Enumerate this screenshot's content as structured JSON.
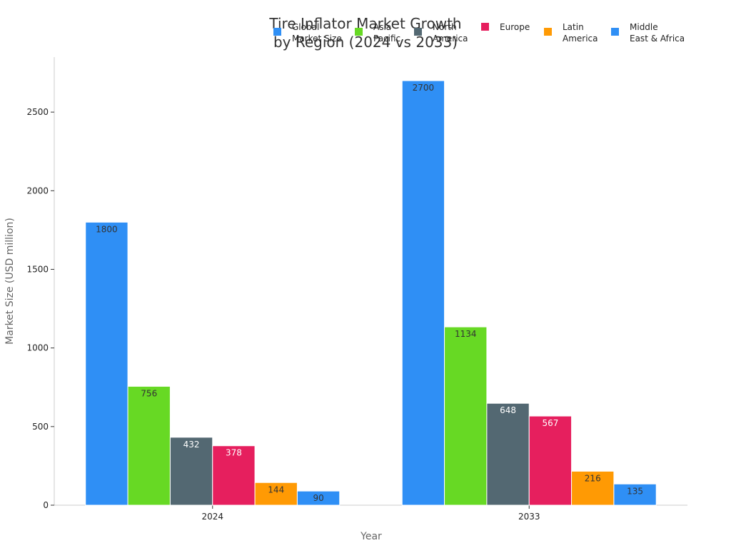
{
  "chart_data": {
    "type": "bar",
    "title_lines": [
      "Tire Inflator Market Growth",
      "by Region (2024 vs 2033)"
    ],
    "xlabel": "Year",
    "ylabel": "Market Size (USD million)",
    "categories": [
      "2024",
      "2033"
    ],
    "ylim": [
      0,
      2850
    ],
    "yticks": [
      0,
      500,
      1000,
      1500,
      2000,
      2500
    ],
    "grid": false,
    "legend_position": "top-right",
    "series": [
      {
        "name": "Global Market Size",
        "legend_lines": [
          "Global",
          "Market Size"
        ],
        "color": "#2f8ff5",
        "label_color": "#333333",
        "values": [
          1800,
          2700
        ]
      },
      {
        "name": "Asia Pacific",
        "legend_lines": [
          "Asia",
          "Pacific"
        ],
        "color": "#67d924",
        "label_color": "#333333",
        "values": [
          756,
          1134
        ]
      },
      {
        "name": "North America",
        "legend_lines": [
          "North",
          "America"
        ],
        "color": "#536872",
        "label_color": "#ffffff",
        "values": [
          432,
          648
        ]
      },
      {
        "name": "Europe",
        "legend_lines": [
          "Europe"
        ],
        "color": "#e61f5e",
        "label_color": "#ffffff",
        "values": [
          378,
          567
        ]
      },
      {
        "name": "Latin America",
        "legend_lines": [
          "Latin",
          "America"
        ],
        "color": "#ff9a04",
        "label_color": "#333333",
        "values": [
          144,
          216
        ]
      },
      {
        "name": "Middle East & Africa",
        "legend_lines": [
          "Middle",
          "East & Africa"
        ],
        "color": "#2f8ff5",
        "label_color": "#333333",
        "values": [
          90,
          135
        ]
      }
    ]
  }
}
